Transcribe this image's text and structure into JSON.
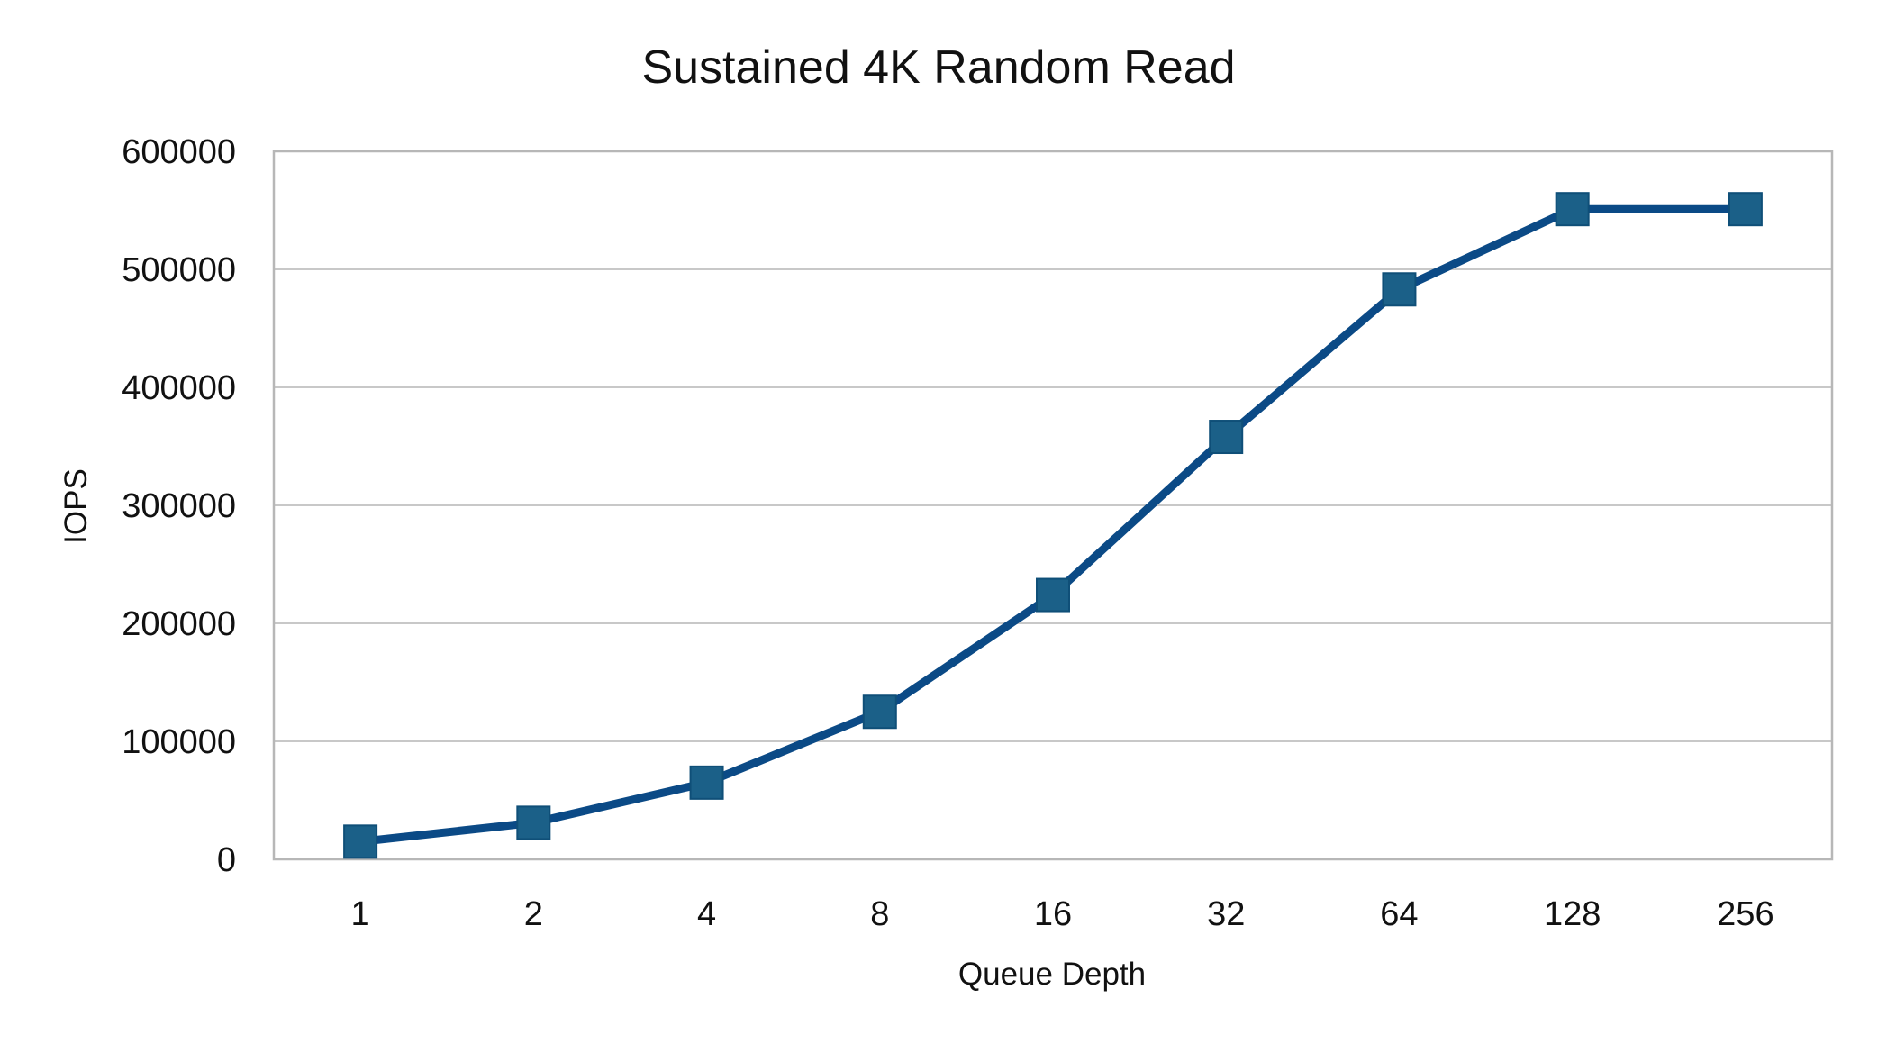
{
  "chart_data": {
    "type": "line",
    "title": "Sustained 4K Random Read",
    "xlabel": "Queue Depth",
    "ylabel": "IOPS",
    "categories": [
      "1",
      "2",
      "4",
      "8",
      "16",
      "32",
      "64",
      "128",
      "256"
    ],
    "series": [
      {
        "values": [
          15000,
          31000,
          65000,
          125000,
          224000,
          358000,
          483000,
          551000,
          551000
        ]
      }
    ],
    "ylim": [
      0,
      600000
    ],
    "yticks": [
      "0",
      "100000",
      "200000",
      "300000",
      "400000",
      "500000",
      "600000"
    ],
    "grid": true,
    "legend": "none",
    "marker": "square",
    "colors": {
      "line": "#0b4a86",
      "marker": "#1b6088",
      "marker_edge": "#0f4f78",
      "grid": "#c8c8c8",
      "frame": "#b7b7b7",
      "text": "#111111"
    }
  }
}
